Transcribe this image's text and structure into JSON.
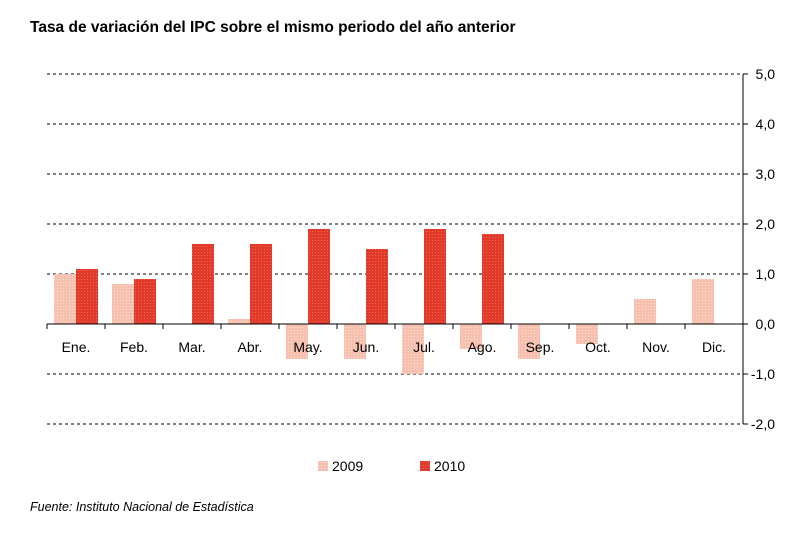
{
  "title": "Tasa de variación del IPC sobre el mismo periodo del año anterior",
  "source": "Fuente: Instituto Nacional de Estadística",
  "colors": {
    "s2009": "#f6bfae",
    "s2010": "#e23a2a",
    "grid": "#000000"
  },
  "chart_data": {
    "type": "bar",
    "categories": [
      "Ene.",
      "Feb.",
      "Mar.",
      "Abr.",
      "May.",
      "Jun.",
      "Jul.",
      "Ago.",
      "Sep.",
      "Oct.",
      "Nov.",
      "Dic."
    ],
    "series": [
      {
        "name": "2009",
        "values": [
          1.0,
          0.8,
          null,
          0.1,
          -0.7,
          -0.7,
          -1.0,
          -0.5,
          -0.7,
          -0.4,
          0.5,
          0.9
        ]
      },
      {
        "name": "2010",
        "values": [
          1.1,
          0.9,
          1.6,
          1.6,
          1.9,
          1.5,
          1.9,
          1.8,
          null,
          null,
          null,
          null
        ]
      }
    ],
    "ylim": [
      -2.0,
      5.0
    ],
    "yticks": [
      "5,0",
      "4,0",
      "3,0",
      "2,0",
      "1,0",
      "0,0",
      "-1,0",
      "-2,0"
    ],
    "ytick_values": [
      5,
      4,
      3,
      2,
      1,
      0,
      -1,
      -2
    ],
    "grid": true,
    "y_axis_side": "right",
    "legend_position": "bottom"
  }
}
